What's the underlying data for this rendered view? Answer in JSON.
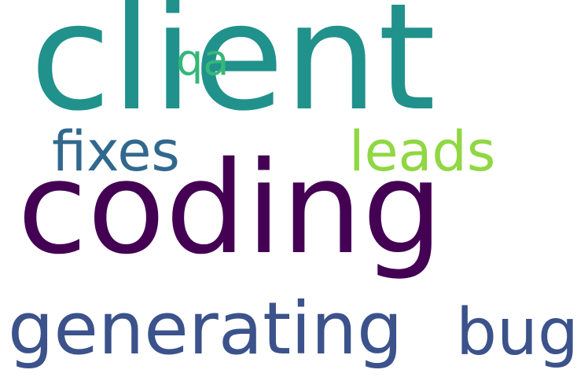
{
  "words": {
    "client": {
      "text": "client",
      "color": "#21918c"
    },
    "qa": {
      "text": "qa",
      "color": "#35b779"
    },
    "fixes": {
      "text": "fixes",
      "color": "#31688e"
    },
    "leads": {
      "text": "leads",
      "color": "#90d743"
    },
    "coding": {
      "text": "coding",
      "color": "#440154"
    },
    "generating": {
      "text": "generating",
      "color": "#3b528b"
    },
    "bug": {
      "text": "bug",
      "color": "#3b528b"
    }
  }
}
